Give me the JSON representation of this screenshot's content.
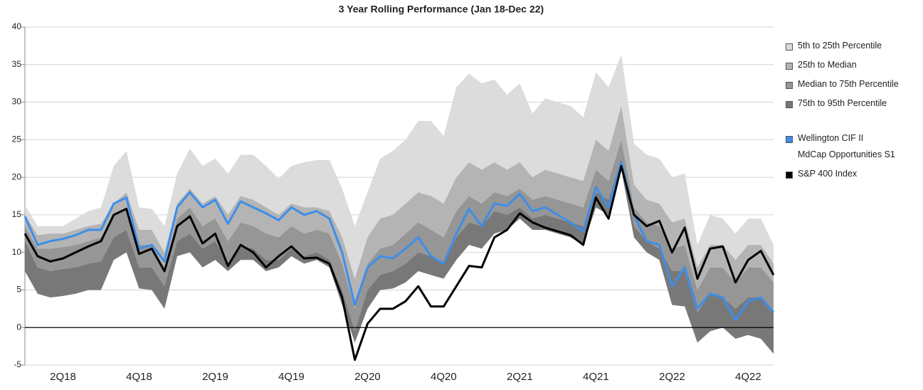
{
  "chart_data": {
    "type": "line",
    "title": "3 Year Rolling Performance (Jan 18-Dec 22)",
    "categories": [
      null,
      null,
      null,
      "2Q18",
      null,
      null,
      null,
      null,
      null,
      "4Q18",
      null,
      null,
      null,
      null,
      null,
      "2Q19",
      null,
      null,
      null,
      null,
      null,
      "4Q19",
      null,
      null,
      null,
      null,
      null,
      "2Q20",
      null,
      null,
      null,
      null,
      null,
      "4Q20",
      null,
      null,
      null,
      null,
      null,
      "2Q21",
      null,
      null,
      null,
      null,
      null,
      "4Q21",
      null,
      null,
      null,
      null,
      null,
      "2Q22",
      null,
      null,
      null,
      null,
      null,
      "4Q22",
      null,
      null
    ],
    "bands": [
      {
        "name": "5th to 25th Percentile",
        "color": "#dcdcdc",
        "values": [
          16.3,
          13.5,
          13.5,
          13.5,
          14.5,
          15.5,
          16,
          21.5,
          23.5,
          16,
          15.8,
          13.5,
          20.5,
          23.8,
          21.5,
          22.5,
          20.5,
          23,
          23,
          21.5,
          19.8,
          21.5,
          22,
          22.3,
          22.3,
          18.5,
          13.5,
          18,
          22.5,
          23.5,
          25,
          27.5,
          27.5,
          25.5,
          32,
          33.8,
          32.5,
          33,
          31,
          32.5,
          28.5,
          30.5,
          30,
          29.5,
          28,
          34,
          32,
          36.3,
          24.5,
          23,
          22.5,
          20,
          20.5,
          11,
          15,
          14.5,
          12.5,
          14.5,
          14.5,
          11
        ]
      },
      {
        "name": "25th to Median",
        "color": "#b4b4b4",
        "values": [
          15,
          12.3,
          12.5,
          12.5,
          13,
          13.5,
          13.8,
          16.5,
          18,
          13,
          13,
          10,
          16.5,
          18.5,
          16.5,
          17.5,
          15,
          17.5,
          17,
          16,
          15,
          16.5,
          16,
          16,
          15.5,
          12,
          6.5,
          12,
          14.5,
          15,
          16.5,
          18,
          17.5,
          16.5,
          20,
          22,
          21,
          22,
          21,
          22,
          20,
          21,
          20.5,
          20,
          19.5,
          25,
          23.5,
          29.5,
          19,
          17,
          16.5,
          14,
          14.5,
          8,
          11,
          11,
          9,
          11,
          11,
          8.5
        ]
      },
      {
        "name": "Median to 75th Percentile",
        "color": "#969696",
        "values": [
          13.5,
          10.5,
          10.5,
          10.7,
          11,
          11.5,
          12,
          15,
          16,
          11,
          11,
          8,
          14.5,
          16,
          13.5,
          14.5,
          11.5,
          14,
          13.5,
          12.5,
          12,
          13.5,
          12.5,
          13,
          12.5,
          8.5,
          2.5,
          8.5,
          10.5,
          11,
          12.5,
          14,
          13,
          12,
          15.5,
          17.5,
          16.5,
          18,
          17.5,
          18.5,
          17,
          17.5,
          17,
          16.5,
          16,
          21,
          19.5,
          25,
          16,
          14,
          13.5,
          10.5,
          11,
          5,
          8,
          8,
          6,
          8,
          8,
          6
        ]
      },
      {
        "name": "75th to 95th Percentile",
        "color": "#787878",
        "values": [
          11.5,
          8,
          7.5,
          7.8,
          8,
          8.5,
          8.8,
          12,
          13,
          8,
          8,
          5.5,
          11.5,
          12.5,
          10.5,
          11.5,
          8.5,
          11,
          10.5,
          9,
          9,
          10.5,
          9.5,
          10,
          9,
          5,
          -0.5,
          5,
          7,
          7.5,
          8.5,
          10,
          9.5,
          8.5,
          12,
          14,
          13.5,
          15.5,
          15,
          16,
          14.5,
          15,
          14.5,
          14,
          13.5,
          18,
          17,
          22.5,
          13.5,
          11.5,
          10.5,
          7.5,
          7.5,
          2,
          4.5,
          4,
          2.5,
          4,
          4,
          2
        ]
      }
    ],
    "floor": [
      7.5,
      4.5,
      4,
      4.2,
      4.5,
      5,
      5,
      9,
      10,
      5.2,
      5,
      2.5,
      9.5,
      10,
      8,
      9,
      7.5,
      9,
      9,
      7.5,
      8,
      9.5,
      8.5,
      9,
      8,
      3,
      -2,
      2.5,
      5,
      5.2,
      6,
      7.5,
      7,
      6.5,
      9,
      11,
      10.5,
      12.5,
      13,
      14.5,
      13,
      13,
      12.5,
      12,
      11,
      16,
      15,
      21,
      12,
      10,
      9,
      3,
      2.8,
      -2,
      -0.5,
      0,
      -1.5,
      -1,
      -1.5,
      -3.5
    ],
    "series": [
      {
        "name": "Wellington CIF II\nMdCap Opportunities S1",
        "color": "#3c8ee8",
        "values": [
          14.8,
          11,
          11.5,
          11.8,
          12.3,
          13,
          13,
          16.5,
          17.3,
          10.5,
          11,
          8.8,
          16,
          18,
          16,
          17,
          13.8,
          16.8,
          16,
          15.2,
          14.3,
          16,
          15,
          15.5,
          14.5,
          10,
          3,
          8,
          9.5,
          9.2,
          10.5,
          12,
          9.5,
          8.5,
          12.5,
          15.8,
          13.5,
          16.5,
          16.2,
          17.8,
          15.5,
          16,
          15,
          14,
          12.8,
          18.7,
          16,
          22,
          15,
          11.5,
          11,
          5.5,
          8,
          2.5,
          4.5,
          4,
          1,
          3.5,
          4,
          2
        ]
      },
      {
        "name": "S&P 400 Index",
        "color": "#000000",
        "values": [
          12.5,
          9.5,
          8.8,
          9.2,
          10,
          10.8,
          11.5,
          15,
          15.8,
          9.8,
          10.5,
          7.5,
          13.5,
          14.8,
          11.2,
          12.5,
          8.2,
          11,
          10,
          8,
          9.5,
          10.8,
          9.2,
          9.3,
          8.5,
          4,
          -4.3,
          0.5,
          2.5,
          2.5,
          3.5,
          5.5,
          2.8,
          2.8,
          5.5,
          8.2,
          8,
          12,
          13,
          15.2,
          14,
          13.3,
          12.8,
          12.3,
          11,
          17.3,
          14.5,
          21.5,
          15,
          13.5,
          14.2,
          10,
          13.3,
          6.5,
          10.5,
          10.8,
          6,
          9,
          10.2,
          7
        ]
      }
    ],
    "ylim": [
      -5,
      40
    ],
    "yticks": [
      -5,
      0,
      5,
      10,
      15,
      20,
      25,
      30,
      35,
      40
    ],
    "grid": true
  }
}
